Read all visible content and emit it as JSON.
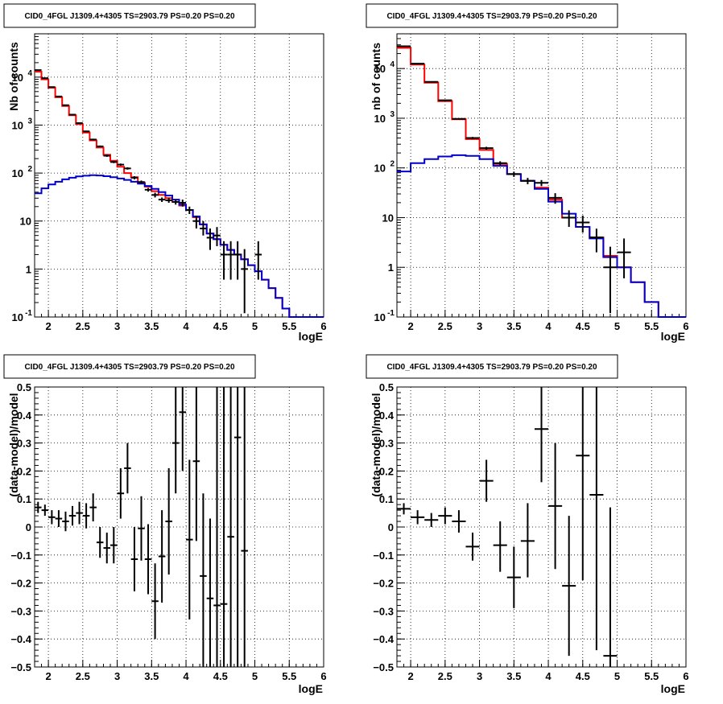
{
  "panels": [
    {
      "title": "CID0_4FGL J1309.4+4305 TS=2903.79 PS=0.20 PS=0.20",
      "chart_data": {
        "type": "line",
        "title": "CID0_4FGL J1309.4+4305 TS=2903.79 PS=0.20 PS=0.20",
        "xlabel": "logE",
        "ylabel": "Nb of counts",
        "xlim": [
          1.8,
          6.0
        ],
        "ylim": [
          0.1,
          80000
        ],
        "yscale": "log",
        "grid": true,
        "xticks": [
          "2",
          "2.5",
          "3",
          "3.5",
          "4",
          "4.5",
          "5",
          "5.5",
          "6"
        ],
        "yticks": [
          {
            "v": 0.1,
            "label": "10",
            "exp": "-1"
          },
          {
            "v": 1,
            "label": "1",
            "exp": ""
          },
          {
            "v": 10,
            "label": "10",
            "exp": ""
          },
          {
            "v": 100,
            "label": "10",
            "exp": "2"
          },
          {
            "v": 1000,
            "label": "10",
            "exp": "3"
          },
          {
            "v": 10000,
            "label": "10",
            "exp": "4"
          }
        ],
        "series": [
          {
            "color": "#ff0000",
            "kind": "step",
            "edges": [
              1.8,
              1.9,
              2.0,
              2.1,
              2.2,
              2.3,
              2.4,
              2.5,
              2.6,
              2.7,
              2.8,
              2.9,
              3.0,
              3.1,
              3.2,
              3.3,
              3.4,
              3.5,
              3.6,
              3.7,
              3.8,
              3.9,
              4.0,
              4.1,
              4.2,
              4.3,
              4.4,
              4.5,
              4.6,
              4.7,
              4.8,
              4.9,
              5.0,
              5.1,
              5.2,
              5.3,
              5.4,
              5.5,
              5.6,
              5.7,
              5.8,
              5.9,
              6.0
            ],
            "values": [
              13000,
              9000,
              6000,
              3800,
              2500,
              1600,
              1050,
              700,
              480,
              340,
              240,
              180,
              135,
              100,
              82,
              64,
              52,
              42,
              35,
              30,
              25,
              21,
              17,
              12,
              8.5,
              5.5,
              4.2,
              3.2,
              2.5,
              2.0,
              1.6,
              1.2,
              0.9,
              0.6,
              0.4,
              0.25,
              0.15,
              0.1,
              0.1,
              0.1,
              0.1,
              0.1
            ]
          },
          {
            "color": "#0000cc",
            "kind": "step",
            "edges": [
              1.8,
              1.9,
              2.0,
              2.1,
              2.2,
              2.3,
              2.4,
              2.5,
              2.6,
              2.7,
              2.8,
              2.9,
              3.0,
              3.1,
              3.2,
              3.3,
              3.4,
              3.5,
              3.6,
              3.7,
              3.8,
              3.9,
              4.0,
              4.1,
              4.2,
              4.3,
              4.4,
              4.5,
              4.6,
              4.7,
              4.8,
              4.9,
              5.0,
              5.1,
              5.2,
              5.3,
              5.4,
              5.5,
              5.6,
              5.7,
              5.8,
              5.9,
              6.0
            ],
            "values": [
              38,
              48,
              58,
              66,
              74,
              80,
              85,
              88,
              90,
              89,
              86,
              82,
              77,
              72,
              66,
              60,
              54,
              47,
              40,
              34,
              28,
              22,
              17,
              12.5,
              8.5,
              5.5,
              4.2,
              3.2,
              2.5,
              2.0,
              1.6,
              1.2,
              0.9,
              0.6,
              0.4,
              0.25,
              0.15,
              0.1,
              0.1,
              0.1,
              0.1,
              0.1
            ]
          },
          {
            "color": "#000000",
            "kind": "errorbar",
            "x": [
              1.85,
              1.95,
              2.05,
              2.15,
              2.25,
              2.35,
              2.45,
              2.55,
              2.65,
              2.75,
              2.85,
              2.95,
              3.05,
              3.15,
              3.25,
              3.35,
              3.45,
              3.55,
              3.65,
              3.75,
              3.85,
              3.95,
              4.05,
              4.15,
              4.25,
              4.35,
              4.45,
              4.55,
              4.65,
              4.75,
              4.85,
              5.05
            ],
            "xerr": 0.05,
            "y": [
              14000,
              9500,
              6200,
              3950,
              2600,
              1650,
              1100,
              740,
              500,
              360,
              230,
              170,
              150,
              125,
              80,
              65,
              45,
              35,
              28,
              27,
              25,
              24,
              17,
              10,
              7,
              4.5,
              5,
              2,
              2,
              2,
              1,
              2
            ],
            "ylo": [
              13800,
              9350,
              6100,
              3880,
              2550,
              1610,
              1070,
              715,
              480,
              345,
              218,
              161,
              142,
              118,
              74,
              60,
              41,
              31,
              25,
              24,
              22,
              20,
              14,
              7,
              5,
              2.5,
              3,
              0.6,
              0.6,
              0.6,
              0.12,
              0.6
            ],
            "yhi": [
              14200,
              9650,
              6300,
              4020,
              2650,
              1690,
              1130,
              765,
              520,
              375,
              242,
              179,
              158,
              132,
              86,
              70,
              49,
              39,
              31,
              30,
              28,
              28,
              20,
              13,
              10,
              7,
              7.5,
              3.8,
              3.8,
              3.8,
              2.6,
              3.8
            ]
          }
        ]
      }
    },
    {
      "title": "CID0_4FGL J1309.4+4305 TS=2903.79 PS=0.20 PS=0.20",
      "chart_data": {
        "type": "line",
        "title": "CID0_4FGL J1309.4+4305 TS=2903.79 PS=0.20 PS=0.20",
        "xlabel": "logE",
        "ylabel": "nb of counts",
        "xlim": [
          1.8,
          6.0
        ],
        "ylim": [
          0.1,
          50000
        ],
        "yscale": "log",
        "grid": true,
        "xticks": [
          "2",
          "2.5",
          "3",
          "3.5",
          "4",
          "4.5",
          "5",
          "5.5",
          "6"
        ],
        "yticks": [
          {
            "v": 0.1,
            "label": "10",
            "exp": "-1"
          },
          {
            "v": 1,
            "label": "1",
            "exp": ""
          },
          {
            "v": 10,
            "label": "10",
            "exp": ""
          },
          {
            "v": 100,
            "label": "10",
            "exp": "2"
          },
          {
            "v": 1000,
            "label": "10",
            "exp": "3"
          },
          {
            "v": 10000,
            "label": "10",
            "exp": "4"
          }
        ],
        "series": [
          {
            "color": "#ff0000",
            "kind": "step",
            "edges": [
              1.8,
              2.0,
              2.2,
              2.4,
              2.6,
              2.8,
              3.0,
              3.2,
              3.4,
              3.6,
              3.8,
              4.0,
              4.2,
              4.4,
              4.6,
              4.8,
              5.0,
              5.2,
              5.4,
              5.6,
              5.8,
              6.0
            ],
            "values": [
              26000,
              12000,
              5200,
              2200,
              950,
              380,
              230,
              120,
              75,
              55,
              40,
              23,
              10,
              6.5,
              4,
              1.7,
              1.0,
              0.5,
              0.2,
              0.1,
              0.1
            ]
          },
          {
            "color": "#0000cc",
            "kind": "step",
            "edges": [
              1.8,
              2.0,
              2.2,
              2.4,
              2.6,
              2.8,
              3.0,
              3.2,
              3.4,
              3.6,
              3.8,
              4.0,
              4.2,
              4.4,
              4.6,
              4.8,
              5.0,
              5.2,
              5.4,
              5.6,
              5.8,
              6.0
            ],
            "values": [
              85,
              125,
              150,
              170,
              180,
              175,
              150,
              110,
              75,
              55,
              38,
              21,
              12,
              6.5,
              3.8,
              1.6,
              1.0,
              0.5,
              0.2,
              0.1,
              0.1
            ]
          },
          {
            "color": "#000000",
            "kind": "errorbar",
            "x": [
              1.9,
              2.1,
              2.3,
              2.5,
              2.7,
              2.9,
              3.1,
              3.3,
              3.5,
              3.7,
              3.9,
              4.1,
              4.3,
              4.5,
              4.7,
              4.9,
              5.1
            ],
            "xerr": 0.1,
            "y": [
              28000,
              12500,
              5400,
              2300,
              970,
              400,
              250,
              125,
              75,
              55,
              50,
              25,
              10,
              8,
              4,
              1,
              2
            ],
            "ylo": [
              27700,
              12300,
              5300,
              2250,
              940,
              380,
              234,
              114,
              66,
              47,
              43,
              19,
              6.5,
              5,
              2,
              0.12,
              0.6
            ],
            "yhi": [
              28300,
              12700,
              5500,
              2350,
              1000,
              420,
              266,
              136,
              84,
              63,
              57,
              31,
              14,
              11,
              6,
              2.6,
              3.8
            ]
          }
        ]
      }
    },
    {
      "title": "CID0_4FGL J1309.4+4305 TS=2903.79 PS=0.20 PS=0.20",
      "chart_data": {
        "type": "scatter",
        "title": "CID0_4FGL J1309.4+4305 TS=2903.79 PS=0.20 PS=0.20",
        "xlabel": "logE",
        "ylabel": "(data-model)/model",
        "xlim": [
          1.8,
          6.0
        ],
        "ylim": [
          -0.5,
          0.5
        ],
        "yscale": "linear",
        "grid": true,
        "xticks": [
          "2",
          "2.5",
          "3",
          "3.5",
          "4",
          "4.5",
          "5",
          "5.5",
          "6"
        ],
        "yticks": [
          {
            "v": -0.5,
            "label": "−0.5",
            "exp": ""
          },
          {
            "v": -0.4,
            "label": "−0.4",
            "exp": ""
          },
          {
            "v": -0.3,
            "label": "−0.3",
            "exp": ""
          },
          {
            "v": -0.2,
            "label": "−0.2",
            "exp": ""
          },
          {
            "v": -0.1,
            "label": "−0.1",
            "exp": ""
          },
          {
            "v": 0,
            "label": "0",
            "exp": ""
          },
          {
            "v": 0.1,
            "label": "0.1",
            "exp": ""
          },
          {
            "v": 0.2,
            "label": "0.2",
            "exp": ""
          },
          {
            "v": 0.3,
            "label": "0.3",
            "exp": ""
          },
          {
            "v": 0.4,
            "label": "0.4",
            "exp": ""
          },
          {
            "v": 0.5,
            "label": "0.5",
            "exp": ""
          }
        ],
        "series": [
          {
            "color": "#000000",
            "kind": "errorbar",
            "x": [
              1.85,
              1.95,
              2.05,
              2.15,
              2.25,
              2.35,
              2.45,
              2.55,
              2.65,
              2.75,
              2.85,
              2.95,
              3.05,
              3.15,
              3.25,
              3.35,
              3.45,
              3.55,
              3.65,
              3.75,
              3.85,
              3.95,
              4.05,
              4.15,
              4.25,
              4.35,
              4.45,
              4.55,
              4.65,
              4.75,
              4.85
            ],
            "xerr": 0.05,
            "y": [
              0.07,
              0.06,
              0.035,
              0.03,
              0.02,
              0.04,
              0.05,
              0.04,
              0.07,
              -0.055,
              -0.075,
              -0.065,
              0.12,
              0.21,
              -0.115,
              -0.005,
              -0.115,
              -0.265,
              -0.105,
              0.02,
              0.3,
              0.41,
              -0.045,
              0.235,
              -0.175,
              -0.255,
              -0.28,
              -0.275,
              -0.035,
              0.32,
              -0.085
            ],
            "ylo": [
              0.05,
              0.04,
              0.01,
              0.0,
              -0.015,
              0.005,
              0.01,
              -0.005,
              0.02,
              -0.11,
              -0.13,
              -0.13,
              0.03,
              0.12,
              -0.23,
              -0.12,
              -0.24,
              -0.4,
              -0.27,
              -0.17,
              0.12,
              0.2,
              -0.33,
              -0.05,
              -0.5,
              -0.5,
              -0.5,
              -0.5,
              -0.5,
              -0.5,
              -0.5
            ],
            "yhi": [
              0.09,
              0.08,
              0.06,
              0.06,
              0.055,
              0.075,
              0.09,
              0.085,
              0.12,
              0.0,
              -0.02,
              0.0,
              0.21,
              0.3,
              0.0,
              0.11,
              0.01,
              -0.13,
              0.06,
              0.21,
              0.5,
              0.5,
              0.24,
              0.5,
              0.12,
              0.03,
              0.5,
              0.5,
              0.5,
              0.5,
              0.5
            ]
          }
        ]
      }
    },
    {
      "title": "CID0_4FGL J1309.4+4305 TS=2903.79 PS=0.20 PS=0.20",
      "chart_data": {
        "type": "scatter",
        "title": "CID0_4FGL J1309.4+4305 TS=2903.79 PS=0.20 PS=0.20",
        "xlabel": "logE",
        "ylabel": "(data-model)/model",
        "xlim": [
          1.8,
          6.0
        ],
        "ylim": [
          -0.5,
          0.5
        ],
        "yscale": "linear",
        "grid": true,
        "xticks": [
          "2",
          "2.5",
          "3",
          "3.5",
          "4",
          "4.5",
          "5",
          "5.5",
          "6"
        ],
        "yticks": [
          {
            "v": -0.5,
            "label": "−0.5",
            "exp": ""
          },
          {
            "v": -0.4,
            "label": "−0.4",
            "exp": ""
          },
          {
            "v": -0.3,
            "label": "−0.3",
            "exp": ""
          },
          {
            "v": -0.2,
            "label": "−0.2",
            "exp": ""
          },
          {
            "v": -0.1,
            "label": "−0.1",
            "exp": ""
          },
          {
            "v": 0,
            "label": "0",
            "exp": ""
          },
          {
            "v": 0.1,
            "label": "0.1",
            "exp": ""
          },
          {
            "v": 0.2,
            "label": "0.2",
            "exp": ""
          },
          {
            "v": 0.3,
            "label": "0.3",
            "exp": ""
          },
          {
            "v": 0.4,
            "label": "0.4",
            "exp": ""
          },
          {
            "v": 0.5,
            "label": "0.5",
            "exp": ""
          }
        ],
        "series": [
          {
            "color": "#000000",
            "kind": "errorbar",
            "x": [
              1.9,
              2.1,
              2.3,
              2.5,
              2.7,
              2.9,
              3.1,
              3.3,
              3.5,
              3.7,
              3.9,
              4.1,
              4.3,
              4.5,
              4.7,
              4.9
            ],
            "xerr": 0.1,
            "y": [
              0.065,
              0.035,
              0.025,
              0.04,
              0.02,
              -0.07,
              0.165,
              -0.065,
              -0.18,
              -0.05,
              0.35,
              0.075,
              -0.21,
              0.255,
              0.115,
              -0.46
            ],
            "ylo": [
              0.045,
              0.01,
              0.0,
              0.01,
              -0.02,
              -0.12,
              0.09,
              -0.16,
              -0.29,
              -0.18,
              0.16,
              -0.15,
              -0.46,
              -0.19,
              -0.44,
              -0.5
            ],
            "yhi": [
              0.085,
              0.06,
              0.05,
              0.07,
              0.06,
              -0.02,
              0.24,
              0.02,
              -0.07,
              0.085,
              0.5,
              0.3,
              0.04,
              0.5,
              0.5,
              0.07
            ]
          }
        ]
      }
    }
  ]
}
